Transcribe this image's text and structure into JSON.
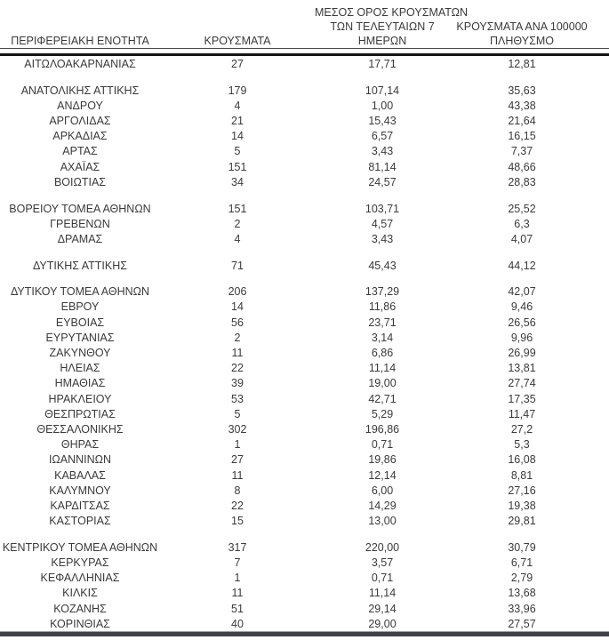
{
  "colors": {
    "text": "#3a3a3a",
    "header_thin_rule": "#4a4a4a",
    "header_thick_rule": "#141414",
    "bottom_bar": "#3d4145",
    "bottom_bar_top_line": "#9e9e9e",
    "background": "#ffffff"
  },
  "table": {
    "columns": [
      {
        "id": "region",
        "label": "ΠΕΡΙΦΕΡΕΙΑΚΗ ΕΝΟΤΗΤΑ",
        "lines": [
          "ΠΕΡΙΦΕΡΕΙΑΚΗ ΕΝΟΤΗΤΑ"
        ]
      },
      {
        "id": "cases",
        "label": "ΚΡΟΥΣΜΑΤΑ",
        "lines": [
          "ΚΡΟΥΣΜΑΤΑ"
        ]
      },
      {
        "id": "avg7",
        "label": "ΜΕΣΟΣ ΟΡΟΣ ΚΡΟΥΣΜΑΤΩΝ ΤΩΝ ΤΕΛΕΥΤΑΙΩΝ 7 ΗΜΕΡΩΝ",
        "lines": [
          "ΜΕΣΟΣ ΟΡΟΣ ΚΡΟΥΣΜΑΤΩΝ",
          "ΤΩΝ ΤΕΛΕΥΤΑΙΩΝ 7",
          "ΗΜΕΡΩΝ"
        ]
      },
      {
        "id": "per100k",
        "label": "ΚΡΟΥΣΜΑΤΑ ΑΝΑ 100000 ΠΛΗΘΥΣΜΟ",
        "lines": [
          "ΚΡΟΥΣΜΑΤΑ ΑΝΑ 100000",
          "ΠΛΗΘΥΣΜΟ"
        ]
      }
    ],
    "groups": [
      {
        "rows": [
          {
            "region": "ΑΙΤΩΛΟΑΚΑΡΝΑΝΙΑΣ",
            "cases": "27",
            "avg7": "17,71",
            "per100k": "12,81"
          }
        ]
      },
      {
        "rows": [
          {
            "region": "ΑΝΑΤΟΛΙΚΗΣ ΑΤΤΙΚΗΣ",
            "cases": "179",
            "avg7": "107,14",
            "per100k": "35,63"
          },
          {
            "region": "ΑΝΔΡΟΥ",
            "cases": "4",
            "avg7": "1,00",
            "per100k": "43,38"
          },
          {
            "region": "ΑΡΓΟΛΙΔΑΣ",
            "cases": "21",
            "avg7": "15,43",
            "per100k": "21,64"
          },
          {
            "region": "ΑΡΚΑΔΙΑΣ",
            "cases": "14",
            "avg7": "6,57",
            "per100k": "16,15"
          },
          {
            "region": "ΑΡΤΑΣ",
            "cases": "5",
            "avg7": "3,43",
            "per100k": "7,37"
          },
          {
            "region": "ΑΧΑΪΑΣ",
            "cases": "151",
            "avg7": "81,14",
            "per100k": "48,66"
          },
          {
            "region": "ΒΟΙΩΤΙΑΣ",
            "cases": "34",
            "avg7": "24,57",
            "per100k": "28,83"
          }
        ]
      },
      {
        "rows": [
          {
            "region": "ΒΟΡΕΙΟΥ ΤΟΜΕΑ ΑΘΗΝΩΝ",
            "cases": "151",
            "avg7": "103,71",
            "per100k": "25,52"
          },
          {
            "region": "ΓΡΕΒΕΝΩΝ",
            "cases": "2",
            "avg7": "4,57",
            "per100k": "6,3"
          },
          {
            "region": "ΔΡΑΜΑΣ",
            "cases": "4",
            "avg7": "3,43",
            "per100k": "4,07"
          }
        ]
      },
      {
        "rows": [
          {
            "region": "ΔΥΤΙΚΗΣ ΑΤΤΙΚΗΣ",
            "cases": "71",
            "avg7": "45,43",
            "per100k": "44,12"
          }
        ]
      },
      {
        "rows": [
          {
            "region": "ΔΥΤΙΚΟΥ ΤΟΜΕΑ ΑΘΗΝΩΝ",
            "cases": "206",
            "avg7": "137,29",
            "per100k": "42,07"
          },
          {
            "region": "ΕΒΡΟΥ",
            "cases": "14",
            "avg7": "11,86",
            "per100k": "9,46"
          },
          {
            "region": "ΕΥΒΟΙΑΣ",
            "cases": "56",
            "avg7": "23,71",
            "per100k": "26,56"
          },
          {
            "region": "ΕΥΡΥΤΑΝΙΑΣ",
            "cases": "2",
            "avg7": "3,14",
            "per100k": "9,96"
          },
          {
            "region": "ΖΑΚΥΝΘΟΥ",
            "cases": "11",
            "avg7": "6,86",
            "per100k": "26,99"
          },
          {
            "region": "ΗΛΕΙΑΣ",
            "cases": "22",
            "avg7": "11,14",
            "per100k": "13,81"
          },
          {
            "region": "ΗΜΑΘΙΑΣ",
            "cases": "39",
            "avg7": "19,00",
            "per100k": "27,74"
          },
          {
            "region": "ΗΡΑΚΛΕΙΟΥ",
            "cases": "53",
            "avg7": "42,71",
            "per100k": "17,35"
          },
          {
            "region": "ΘΕΣΠΡΩΤΙΑΣ",
            "cases": "5",
            "avg7": "5,29",
            "per100k": "11,47"
          },
          {
            "region": "ΘΕΣΣΑΛΟΝΙΚΗΣ",
            "cases": "302",
            "avg7": "196,86",
            "per100k": "27,2"
          },
          {
            "region": "ΘΗΡΑΣ",
            "cases": "1",
            "avg7": "0,71",
            "per100k": "5,3"
          },
          {
            "region": "ΙΩΑΝΝΙΝΩΝ",
            "cases": "27",
            "avg7": "19,86",
            "per100k": "16,08"
          },
          {
            "region": "ΚΑΒΑΛΑΣ",
            "cases": "11",
            "avg7": "12,14",
            "per100k": "8,81"
          },
          {
            "region": "ΚΑΛΥΜΝΟΥ",
            "cases": "8",
            "avg7": "6,00",
            "per100k": "27,16"
          },
          {
            "region": "ΚΑΡΔΙΤΣΑΣ",
            "cases": "22",
            "avg7": "14,29",
            "per100k": "19,38"
          },
          {
            "region": "ΚΑΣΤΟΡΙΑΣ",
            "cases": "15",
            "avg7": "13,00",
            "per100k": "29,81"
          }
        ]
      },
      {
        "rows": [
          {
            "region": "ΚΕΝΤΡΙΚΟΥ ΤΟΜΕΑ ΑΘΗΝΩΝ",
            "cases": "317",
            "avg7": "220,00",
            "per100k": "30,79"
          },
          {
            "region": "ΚΕΡΚΥΡΑΣ",
            "cases": "7",
            "avg7": "3,57",
            "per100k": "6,71"
          },
          {
            "region": "ΚΕΦΑΛΛΗΝΙΑΣ",
            "cases": "1",
            "avg7": "0,71",
            "per100k": "2,79"
          },
          {
            "region": "ΚΙΛΚΙΣ",
            "cases": "11",
            "avg7": "11,14",
            "per100k": "13,68"
          },
          {
            "region": "ΚΟΖΑΝΗΣ",
            "cases": "51",
            "avg7": "29,14",
            "per100k": "33,96"
          },
          {
            "region": "ΚΟΡΙΝΘΙΑΣ",
            "cases": "40",
            "avg7": "29,00",
            "per100k": "27,57"
          }
        ]
      }
    ]
  }
}
